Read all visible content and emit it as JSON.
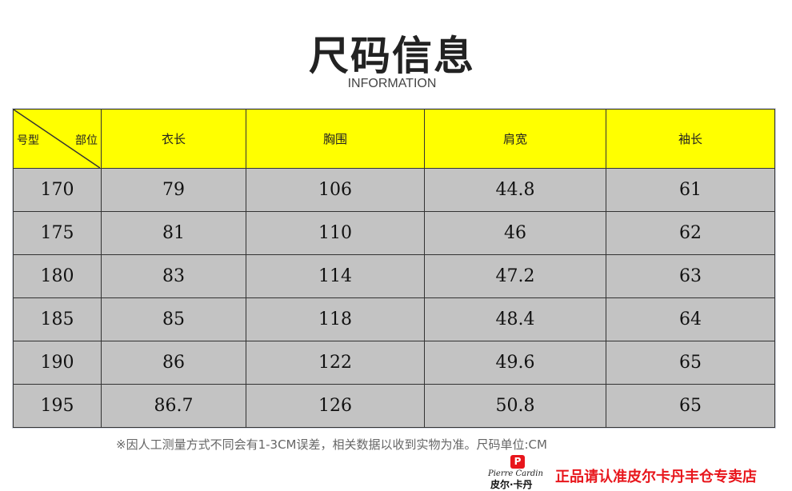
{
  "title": "尺码信息",
  "subtitle": "INFORMATION",
  "table": {
    "corner_left": "号型",
    "corner_right": "部位",
    "headers": [
      "衣长",
      "胸围",
      "肩宽",
      "袖长"
    ],
    "rows": [
      [
        "170",
        "79",
        "106",
        "44.8",
        "61"
      ],
      [
        "175",
        "81",
        "110",
        "46",
        "62"
      ],
      [
        "180",
        "83",
        "114",
        "47.2",
        "63"
      ],
      [
        "185",
        "85",
        "118",
        "48.4",
        "64"
      ],
      [
        "190",
        "86",
        "122",
        "49.6",
        "65"
      ],
      [
        "195",
        "86.7",
        "126",
        "50.8",
        "65"
      ]
    ]
  },
  "note": "※因人工测量方式不同会有1-3CM误差，相关数据以收到实物为准。尺码单位:CM",
  "logo": {
    "script": "Pierre Cardin",
    "cn": "皮尔·卡丹"
  },
  "promo": "正品请认准皮尔卡丹丰仓专卖店",
  "colors": {
    "header_bg": "#ffff00",
    "row_bg": "#c3c3c3",
    "promo": "#e8161c"
  }
}
